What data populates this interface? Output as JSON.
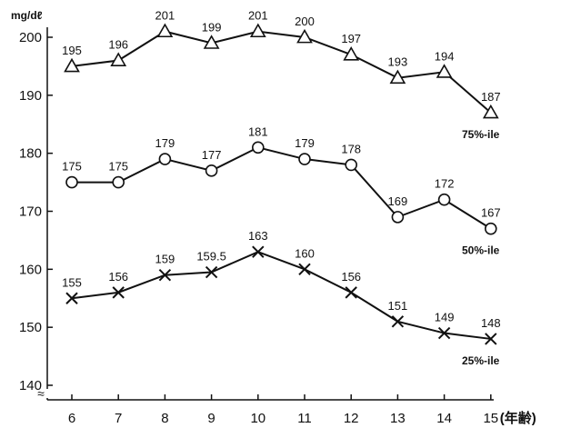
{
  "chart_data": {
    "type": "line",
    "ylabel": "mg/dℓ",
    "xlabel_suffix": "(年齢)",
    "x": [
      6,
      7,
      8,
      9,
      10,
      11,
      12,
      13,
      14,
      15
    ],
    "x_tick_labels": [
      "6",
      "7",
      "8",
      "9",
      "10",
      "11",
      "12",
      "13",
      "14",
      "15"
    ],
    "y_ticks": [
      140,
      150,
      160,
      170,
      180,
      190,
      200
    ],
    "ylim": [
      140,
      200
    ],
    "axis_break_symbol": "≈",
    "grid": false,
    "series": [
      {
        "name": "75%-ile",
        "marker": "triangle",
        "values": [
          195,
          196,
          201,
          199,
          201,
          200,
          197,
          193,
          194,
          187
        ],
        "labels": [
          "195",
          "196",
          "201",
          "199",
          "201",
          "200",
          "197",
          "193",
          "194",
          "187"
        ]
      },
      {
        "name": "50%-ile",
        "marker": "circle",
        "values": [
          175,
          175,
          179,
          177,
          181,
          179,
          178,
          169,
          172,
          167
        ],
        "labels": [
          "175",
          "175",
          "179",
          "177",
          "181",
          "179",
          "178",
          "169",
          "172",
          "167"
        ]
      },
      {
        "name": "25%-ile",
        "marker": "x",
        "values": [
          155,
          156,
          159,
          159.5,
          163,
          160,
          156,
          151,
          149,
          148
        ],
        "labels": [
          "155",
          "156",
          "159",
          "159.5",
          "163",
          "160",
          "156",
          "151",
          "149",
          "148"
        ]
      }
    ]
  }
}
